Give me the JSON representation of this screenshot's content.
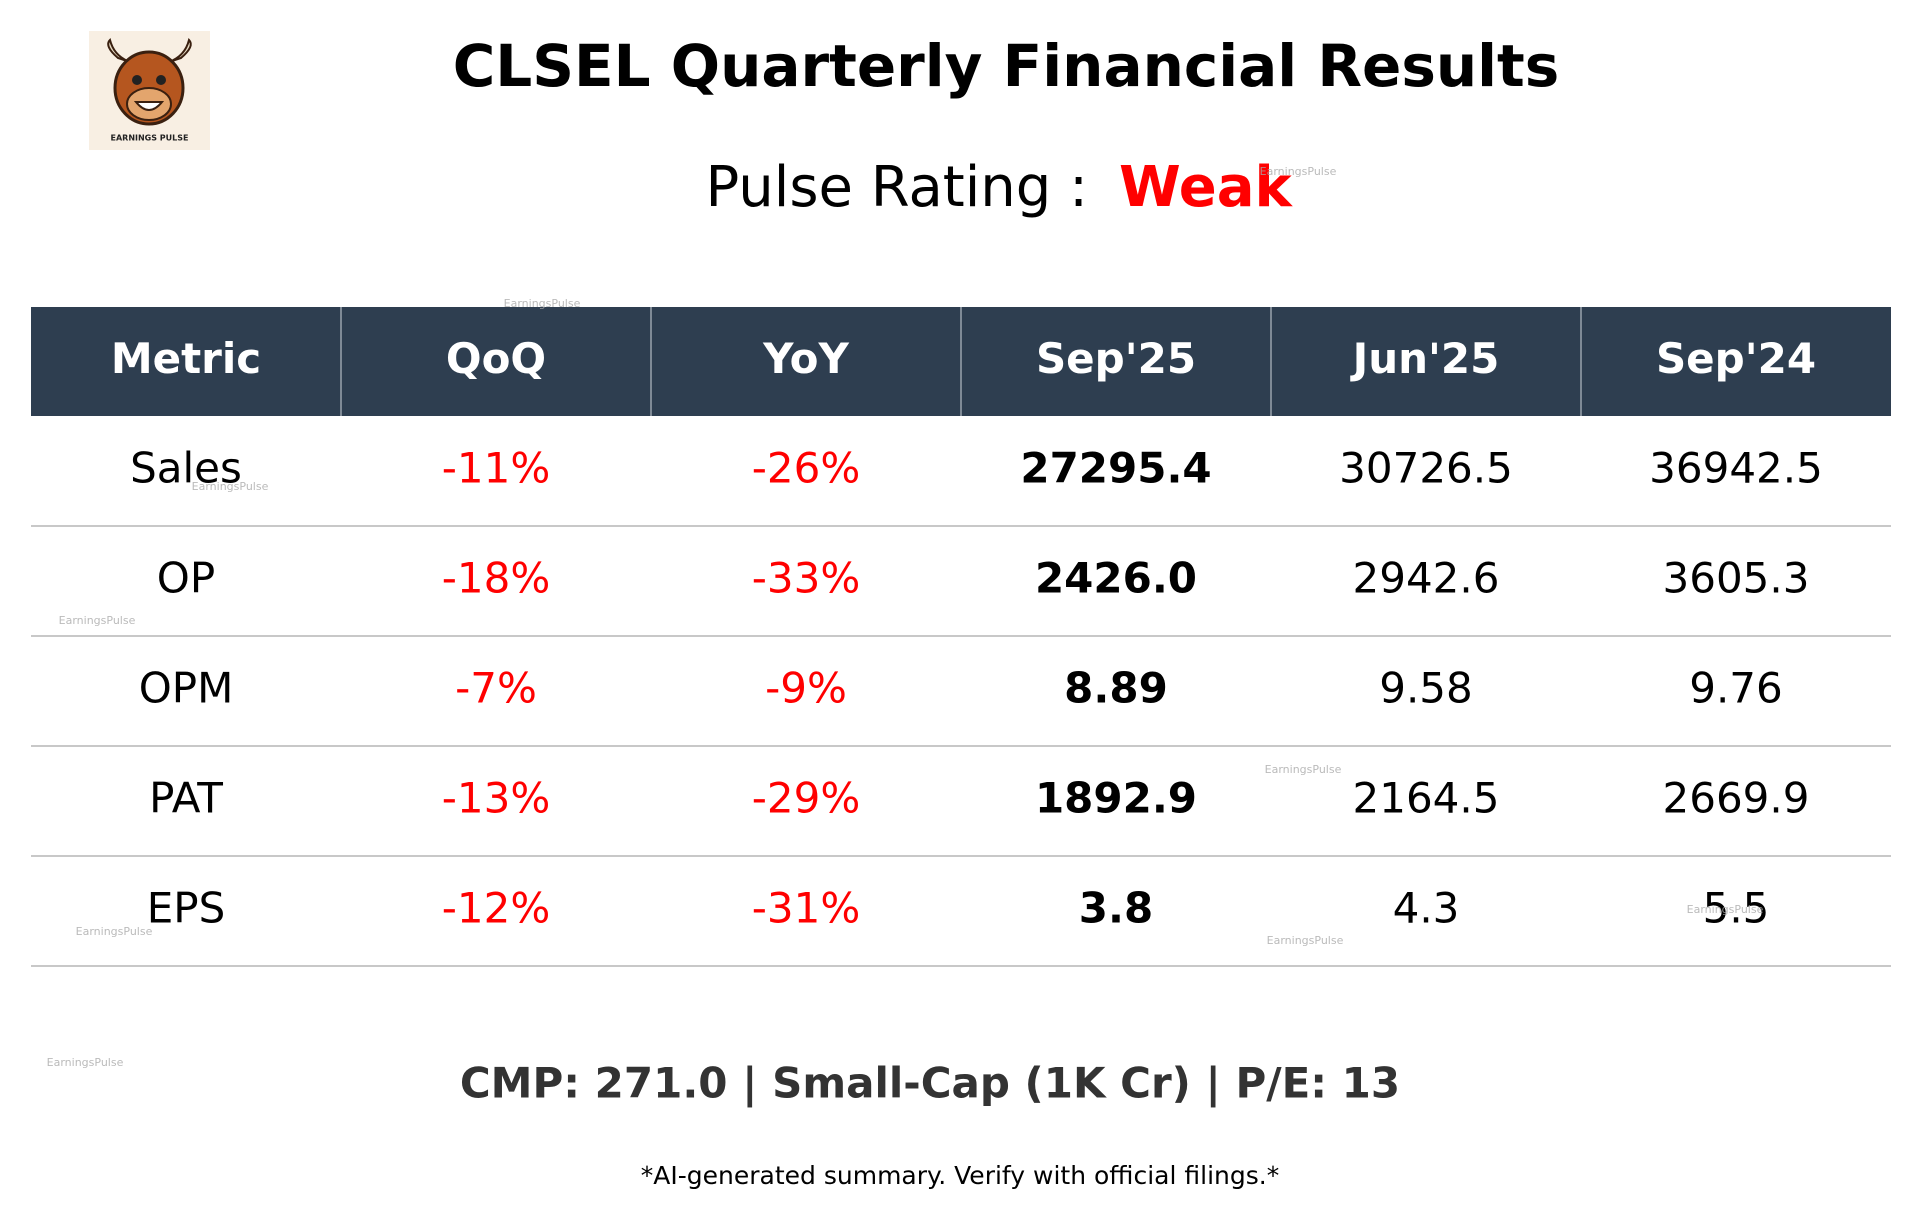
{
  "header": {
    "title": "CLSEL Quarterly Financial Results",
    "rating_label": "Pulse Rating :",
    "rating": "Weak",
    "logo_text": "EARNINGS PULSE"
  },
  "table": {
    "columns": [
      "Metric",
      "QoQ",
      "YoY",
      "Sep'25",
      "Jun'25",
      "Sep'24"
    ],
    "rows": [
      [
        "Sales",
        "-11%",
        "-26%",
        "27295.4",
        "30726.5",
        "36942.5"
      ],
      [
        "OP",
        "-18%",
        "-33%",
        "2426.0",
        "2942.6",
        "3605.3"
      ],
      [
        "OPM",
        "-7%",
        "-9%",
        "8.89",
        "9.58",
        "9.76"
      ],
      [
        "PAT",
        "-13%",
        "-29%",
        "1892.9",
        "2164.5",
        "2669.9"
      ],
      [
        "EPS",
        "-12%",
        "-31%",
        "3.8",
        "4.3",
        "5.5"
      ]
    ]
  },
  "footer": {
    "summary": "CMP: 271.0 | Small-Cap (1K Cr) | P/E: 13",
    "disclaimer": "*AI-generated summary. Verify with official filings.*"
  },
  "watermark": "EarningsPulse"
}
